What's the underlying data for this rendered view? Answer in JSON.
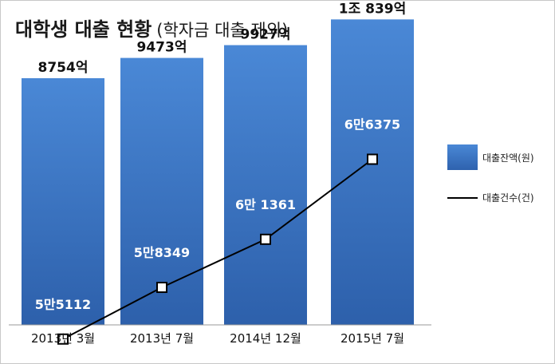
{
  "title": "대학생 대출 현황",
  "subtitle": "(학자금 대출 제외)",
  "chart_data": {
    "type": "bar",
    "categories": [
      "2013년 3월",
      "2013년 7월",
      "2014년 12월",
      "2015년 7월"
    ],
    "series": [
      {
        "name": "대출잔액(원)",
        "type": "bar",
        "values": [
          875400000000,
          947300000000,
          992700000000,
          1083900000000
        ],
        "value_labels": [
          "8754억",
          "9473억",
          "9927억",
          "1조 839억"
        ],
        "color": "#3a75c4",
        "ylim": [
          0,
          1150000000000
        ]
      },
      {
        "name": "대출건수(건)",
        "type": "line",
        "values": [
          55112,
          58349,
          61361,
          66375
        ],
        "value_labels": [
          "5만5112",
          "5만8349",
          "6만 1361",
          "6만6375"
        ],
        "color": "#000000",
        "ylim": [
          51000,
          71000
        ]
      }
    ],
    "legend": "right",
    "grid": false,
    "xlabel": "",
    "ylabel": ""
  }
}
